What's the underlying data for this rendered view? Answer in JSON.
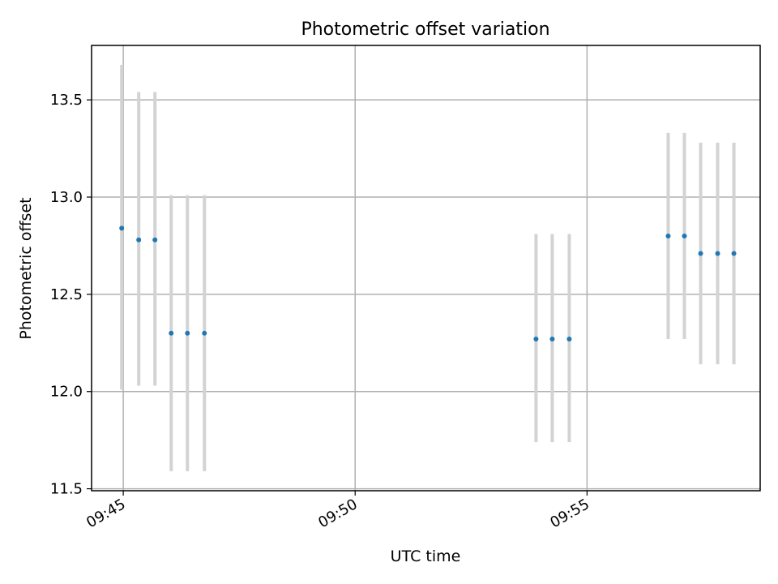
{
  "chart_data": {
    "type": "scatter",
    "title": "Photometric offset variation",
    "xlabel": "UTC time",
    "ylabel": "Photometric offset",
    "x_tick_labels": [
      "09:45",
      "09:50",
      "09:55"
    ],
    "x_tick_values": [
      "09:45",
      "09:50",
      "09:55"
    ],
    "y_tick_labels": [
      "11.5",
      "12.0",
      "12.5",
      "13.0",
      "13.5"
    ],
    "y_tick_values": [
      11.5,
      12.0,
      12.5,
      13.0,
      13.5
    ],
    "xlim": [
      "09:44:19",
      "09:58:44"
    ],
    "ylim": [
      11.49,
      13.78
    ],
    "grid": true,
    "legend": false,
    "colors": {
      "point": "#1f77b4",
      "errorbar": "#d3d3d3",
      "grid": "#b0b0b0"
    },
    "points": [
      {
        "x": "09:44:58",
        "y": 12.84,
        "ylow": 12.01,
        "yhigh": 13.68
      },
      {
        "x": "09:45:20",
        "y": 12.78,
        "ylow": 12.03,
        "yhigh": 13.54
      },
      {
        "x": "09:45:41",
        "y": 12.78,
        "ylow": 12.03,
        "yhigh": 13.54
      },
      {
        "x": "09:46:02",
        "y": 12.3,
        "ylow": 11.59,
        "yhigh": 13.01
      },
      {
        "x": "09:46:23",
        "y": 12.3,
        "ylow": 11.59,
        "yhigh": 13.01
      },
      {
        "x": "09:46:45",
        "y": 12.3,
        "ylow": 11.59,
        "yhigh": 13.01
      },
      {
        "x": "09:53:54",
        "y": 12.27,
        "ylow": 11.74,
        "yhigh": 12.81
      },
      {
        "x": "09:54:15",
        "y": 12.27,
        "ylow": 11.74,
        "yhigh": 12.81
      },
      {
        "x": "09:54:37",
        "y": 12.27,
        "ylow": 11.74,
        "yhigh": 12.81
      },
      {
        "x": "09:56:45",
        "y": 12.8,
        "ylow": 12.27,
        "yhigh": 13.33
      },
      {
        "x": "09:57:06",
        "y": 12.8,
        "ylow": 12.27,
        "yhigh": 13.33
      },
      {
        "x": "09:57:27",
        "y": 12.71,
        "ylow": 12.14,
        "yhigh": 13.28
      },
      {
        "x": "09:57:49",
        "y": 12.71,
        "ylow": 12.14,
        "yhigh": 13.28
      },
      {
        "x": "09:58:10",
        "y": 12.71,
        "ylow": 12.14,
        "yhigh": 13.28
      }
    ]
  }
}
